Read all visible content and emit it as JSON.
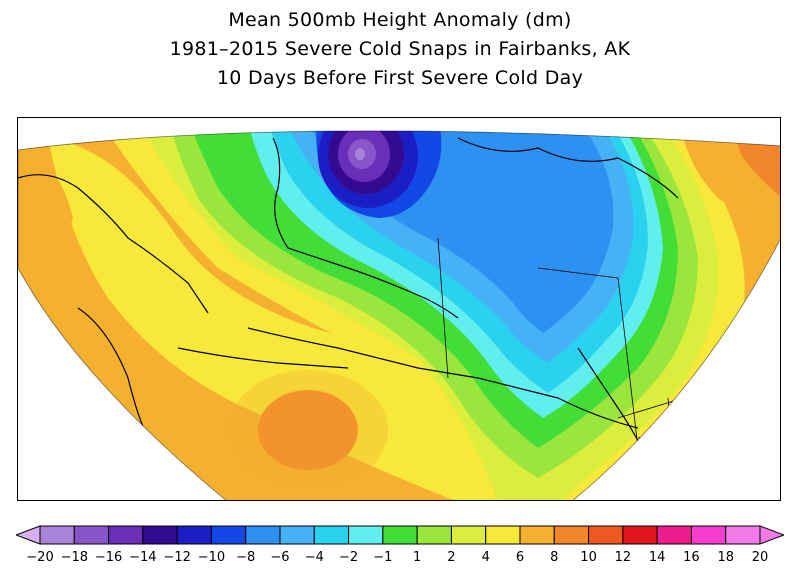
{
  "title": {
    "line1": "Mean 500mb Height Anomaly (dm)",
    "line2": "1981–2015 Severe Cold Snaps in Fairbanks, AK",
    "line3": "10 Days Before First Severe Cold Day"
  },
  "colorbar": {
    "labels": [
      "-20",
      "-18",
      "-16",
      "-14",
      "-12",
      "-10",
      "-8",
      "-6",
      "-4",
      "-2",
      "-1",
      "1",
      "2",
      "4",
      "6",
      "8",
      "10",
      "12",
      "14",
      "16",
      "18",
      "20"
    ],
    "colors": [
      "#d8b0f2",
      "#a784d9",
      "#8856c9",
      "#6a2eb8",
      "#330b92",
      "#1a1ec4",
      "#1448e6",
      "#2e90f0",
      "#45b2f6",
      "#2bd2ef",
      "#60eeee",
      "#43dd37",
      "#9be63c",
      "#dcee3d",
      "#f8e83a",
      "#f4b02e",
      "#f1862a",
      "#ec5a22",
      "#e2141c",
      "#ec1c8c",
      "#f83ccf",
      "#f07ae8"
    ],
    "low_end_color": "#d8b0f2",
    "high_end_color": "#f07ae8"
  },
  "map": {
    "colors": {
      "neg8": "#1448e6",
      "neg6": "#2e90f0",
      "neg4": "#45b2f6",
      "neg2": "#2bd2ef",
      "neg1": "#60eeee",
      "pos1": "#43dd37",
      "pos2": "#9be63c",
      "pos4": "#dcee3d",
      "pos6": "#f8e83a",
      "pos8": "#f4b02e",
      "pos10": "#f1862a",
      "pos12": "#ec5a22",
      "pos14": "#e2141c",
      "neg10": "#1a1ec4",
      "neg12": "#330b92",
      "neg14": "#6a2eb8",
      "neg16": "#8856c9",
      "neg18": "#a784d9"
    }
  }
}
